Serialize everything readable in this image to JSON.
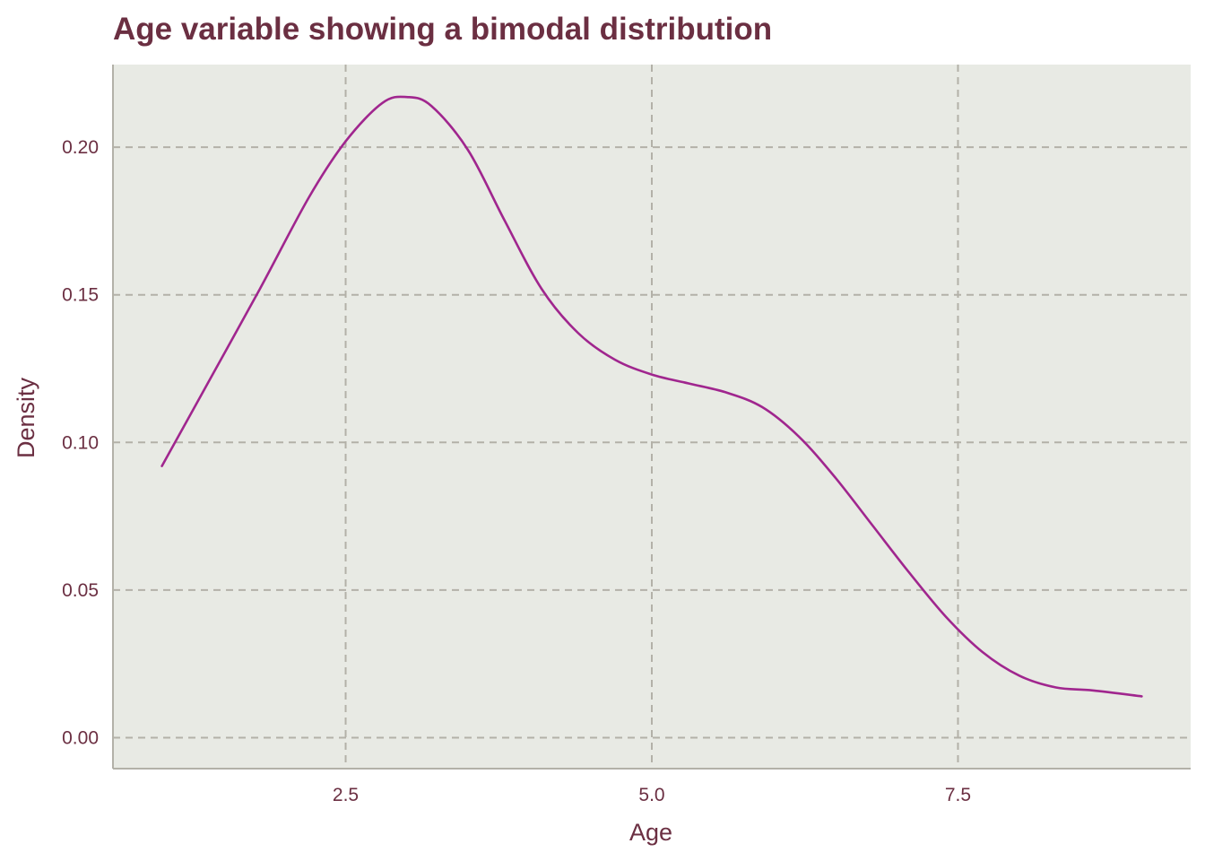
{
  "chart_data": {
    "type": "line",
    "title": "Age variable showing a bimodal distribution",
    "xlabel": "Age",
    "ylabel": "Density",
    "xlim": [
      0.6,
      9.4
    ],
    "ylim": [
      -0.0105,
      0.228
    ],
    "x_ticks": [
      {
        "value": 2.5,
        "label": "2.5"
      },
      {
        "value": 5.0,
        "label": "5.0"
      },
      {
        "value": 7.5,
        "label": "7.5"
      }
    ],
    "y_ticks": [
      {
        "value": 0.0,
        "label": "0.00"
      },
      {
        "value": 0.05,
        "label": "0.05"
      },
      {
        "value": 0.1,
        "label": "0.10"
      },
      {
        "value": 0.15,
        "label": "0.15"
      },
      {
        "value": 0.2,
        "label": "0.20"
      }
    ],
    "grid": true,
    "grid_style": "dashed",
    "legend": "none",
    "colors": {
      "line": "#a0268e",
      "panel": "#e8eae4",
      "grid": "#b3b1a8",
      "axis": "#b3b1a8",
      "text": "#6b2f42"
    },
    "series": [
      {
        "x": [
          1.0,
          1.4,
          1.8,
          2.2,
          2.5,
          2.8,
          3.0,
          3.2,
          3.5,
          3.8,
          4.1,
          4.4,
          4.7,
          5.0,
          5.3,
          5.6,
          5.9,
          6.2,
          6.5,
          6.8,
          7.1,
          7.4,
          7.7,
          8.0,
          8.3,
          8.6,
          9.0
        ],
        "y": [
          0.092,
          0.122,
          0.152,
          0.183,
          0.202,
          0.215,
          0.217,
          0.214,
          0.199,
          0.175,
          0.152,
          0.137,
          0.128,
          0.123,
          0.12,
          0.117,
          0.112,
          0.102,
          0.088,
          0.072,
          0.056,
          0.041,
          0.029,
          0.021,
          0.017,
          0.016,
          0.014
        ]
      }
    ]
  }
}
